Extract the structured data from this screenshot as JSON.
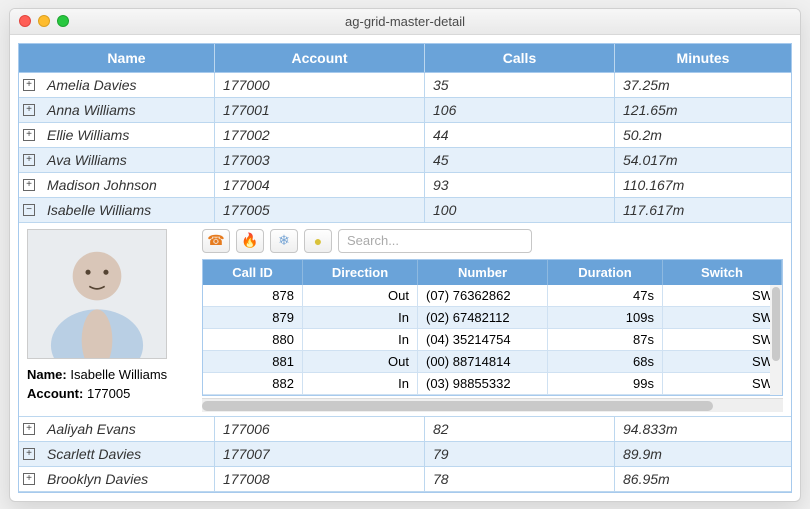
{
  "window": {
    "title": "ag-grid-master-detail"
  },
  "colors": {
    "header_bg": "#6aa3d9",
    "row_even": "#ffffff",
    "row_odd": "#e5f0fa",
    "border": "#bcd7ef"
  },
  "columns": [
    "Name",
    "Account",
    "Calls",
    "Minutes"
  ],
  "rows": [
    {
      "expanded": false,
      "name": "Amelia Davies",
      "account": "177000",
      "calls": "35",
      "minutes": "37.25m"
    },
    {
      "expanded": false,
      "name": "Anna Williams",
      "account": "177001",
      "calls": "106",
      "minutes": "121.65m"
    },
    {
      "expanded": false,
      "name": "Ellie Williams",
      "account": "177002",
      "calls": "44",
      "minutes": "50.2m"
    },
    {
      "expanded": false,
      "name": "Ava Williams",
      "account": "177003",
      "calls": "45",
      "minutes": "54.017m"
    },
    {
      "expanded": false,
      "name": "Madison Johnson",
      "account": "177004",
      "calls": "93",
      "minutes": "110.167m"
    },
    {
      "expanded": true,
      "name": "Isabelle Williams",
      "account": "177005",
      "calls": "100",
      "minutes": "117.617m"
    },
    {
      "expanded": false,
      "name": "Aaliyah Evans",
      "account": "177006",
      "calls": "82",
      "minutes": "94.833m"
    },
    {
      "expanded": false,
      "name": "Scarlett Davies",
      "account": "177007",
      "calls": "79",
      "minutes": "89.9m"
    },
    {
      "expanded": false,
      "name": "Brooklyn Davies",
      "account": "177008",
      "calls": "78",
      "minutes": "86.95m"
    }
  ],
  "detail": {
    "name_label": "Name:",
    "name_value": "Isabelle Williams",
    "account_label": "Account:",
    "account_value": "177005",
    "search_placeholder": "Search...",
    "toolbar_icons": [
      "phone-icon",
      "fire-icon",
      "snowflake-icon",
      "dot-icon"
    ],
    "sub_columns": [
      "Call ID",
      "Direction",
      "Number",
      "Duration",
      "Switch"
    ],
    "sub_rows": [
      {
        "id": "878",
        "dir": "Out",
        "num": "(07) 76362862",
        "dur": "47s",
        "sw": "SW"
      },
      {
        "id": "879",
        "dir": "In",
        "num": "(02) 67482112",
        "dur": "109s",
        "sw": "SW"
      },
      {
        "id": "880",
        "dir": "In",
        "num": "(04) 35214754",
        "dur": "87s",
        "sw": "SW"
      },
      {
        "id": "881",
        "dir": "Out",
        "num": "(00) 88714814",
        "dur": "68s",
        "sw": "SW"
      },
      {
        "id": "882",
        "dir": "In",
        "num": "(03) 98855332",
        "dur": "99s",
        "sw": "SW"
      }
    ]
  }
}
